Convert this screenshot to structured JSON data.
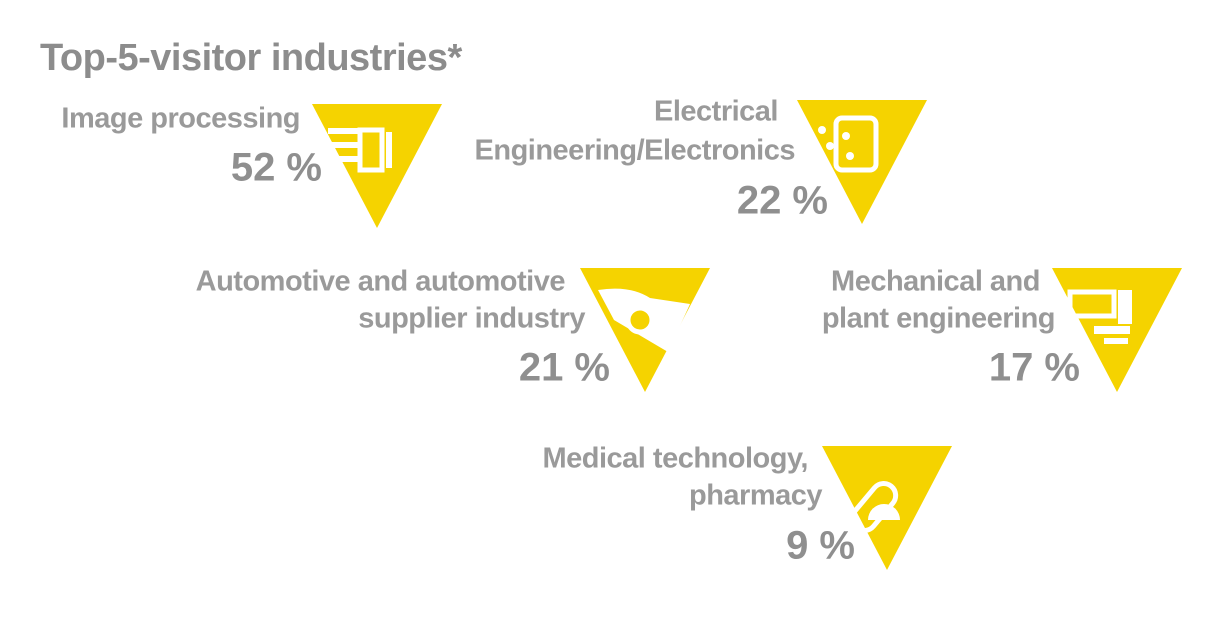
{
  "title": "Top-5-visitor industries*",
  "items": [
    {
      "label": [
        "Image processing"
      ],
      "share": "52 %"
    },
    {
      "label": [
        "Electrical",
        "Engineering/Electronics"
      ],
      "share": "22 %"
    },
    {
      "label": [
        "Automotive and automotive",
        "supplier industry"
      ],
      "share": "21 %"
    },
    {
      "label": [
        "Mechanical and",
        "plant engineering"
      ],
      "share": "17 %"
    },
    {
      "label": [
        "Medical technology,",
        "pharmacy"
      ],
      "share": "9 %"
    }
  ]
}
